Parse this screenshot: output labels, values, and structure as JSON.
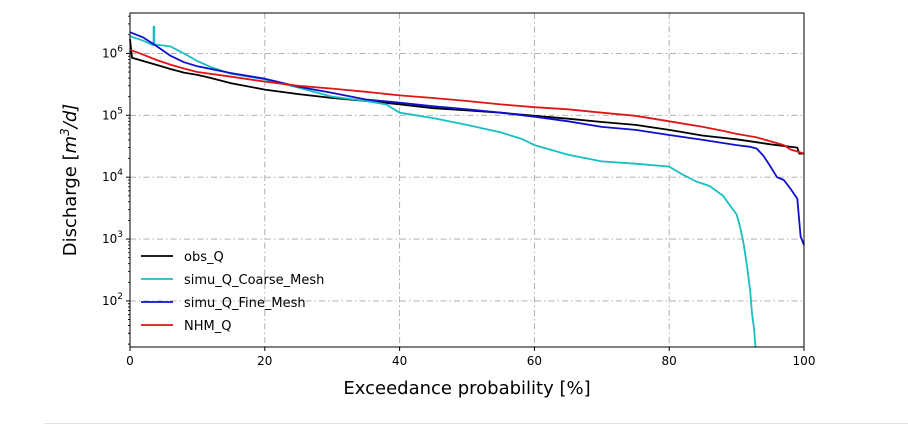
{
  "chart_data": {
    "type": "line",
    "title": "",
    "xlabel": "Exceedance probability [%]",
    "ylabel_prefix": "Discharge [",
    "ylabel_math": "m",
    "ylabel_sup": "3",
    "ylabel_suffix": "/d]",
    "xlim": [
      0,
      100
    ],
    "ylim": [
      18,
      4500000
    ],
    "yscale": "log",
    "grid": true,
    "legend_position": "lower-left",
    "x_ticks": [
      0,
      20,
      40,
      60,
      80,
      100
    ],
    "y_ticks": [
      {
        "value": 100,
        "base": "10",
        "exp": "2"
      },
      {
        "value": 1000,
        "base": "10",
        "exp": "3"
      },
      {
        "value": 10000,
        "base": "10",
        "exp": "4"
      },
      {
        "value": 100000,
        "base": "10",
        "exp": "5"
      },
      {
        "value": 1000000,
        "base": "10",
        "exp": "6"
      }
    ],
    "series": [
      {
        "name": "obs_Q",
        "color": "#000000",
        "x": [
          0,
          0.3,
          2,
          4,
          6,
          8,
          10,
          12,
          15,
          20,
          25,
          30,
          35,
          40,
          45,
          50,
          55,
          60,
          65,
          70,
          75,
          80,
          85,
          90,
          95,
          99,
          99.3,
          100
        ],
        "y": [
          1700000,
          850000,
          750000,
          650000,
          560000,
          490000,
          450000,
          400000,
          330000,
          260000,
          220000,
          190000,
          170000,
          150000,
          130000,
          120000,
          110000,
          98000,
          88000,
          78000,
          70000,
          58000,
          47000,
          41000,
          34000,
          30000,
          24000,
          24000
        ]
      },
      {
        "name": "simu_Q_Coarse_Mesh",
        "color": "#17bfc0",
        "x": [
          0,
          2,
          3.5,
          3.5,
          3.6,
          3.6,
          6,
          8,
          10,
          12,
          15,
          20,
          25,
          30,
          35,
          38,
          40,
          45,
          50,
          55,
          58,
          60,
          65,
          70,
          75,
          80,
          82,
          84,
          86,
          88,
          89,
          90,
          90.5,
          91,
          91.5,
          92,
          92.3,
          92.6,
          92.7,
          92.8
        ],
        "y": [
          1900000,
          1600000,
          1350000,
          2700000,
          2700000,
          1400000,
          1300000,
          1000000,
          750000,
          600000,
          470000,
          380000,
          280000,
          200000,
          170000,
          150000,
          110000,
          90000,
          70000,
          53000,
          42000,
          33000,
          23000,
          18000,
          16500,
          14800,
          11000,
          8500,
          7200,
          5000,
          3500,
          2500,
          1600,
          900,
          400,
          150,
          60,
          35,
          25,
          18
        ]
      },
      {
        "name": "simu_Q_Fine_Mesh",
        "color": "#1010cc",
        "x": [
          0,
          2,
          4,
          6,
          8,
          10,
          12,
          15,
          20,
          25,
          30,
          35,
          40,
          45,
          50,
          55,
          60,
          65,
          70,
          75,
          80,
          85,
          90,
          92,
          93,
          94,
          95,
          96,
          97,
          98,
          99,
          99.5,
          100
        ],
        "y": [
          2200000,
          1800000,
          1300000,
          920000,
          720000,
          620000,
          560000,
          480000,
          390000,
          290000,
          230000,
          180000,
          160000,
          140000,
          125000,
          110000,
          95000,
          80000,
          65000,
          58000,
          48000,
          40000,
          33000,
          31000,
          29000,
          22000,
          15000,
          10000,
          9000,
          6500,
          4500,
          1100,
          800
        ]
      },
      {
        "name": "NHM_Q",
        "color": "#e01515",
        "x": [
          0,
          2,
          4,
          6,
          8,
          10,
          15,
          20,
          25,
          30,
          35,
          40,
          45,
          50,
          55,
          60,
          65,
          70,
          75,
          80,
          85,
          88,
          90,
          93,
          95,
          97,
          98,
          99,
          100
        ],
        "y": [
          1150000,
          950000,
          780000,
          660000,
          570000,
          500000,
          420000,
          350000,
          300000,
          270000,
          240000,
          210000,
          190000,
          170000,
          150000,
          135000,
          125000,
          110000,
          98000,
          80000,
          65000,
          56000,
          50000,
          44000,
          38000,
          33000,
          28000,
          26000,
          24000
        ]
      }
    ]
  }
}
